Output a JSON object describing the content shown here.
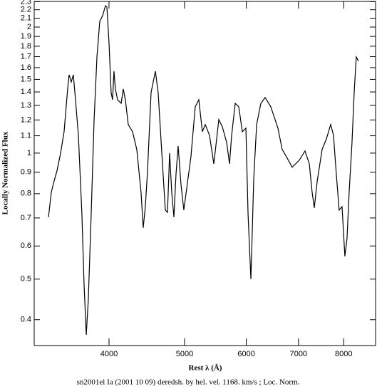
{
  "chart_data": {
    "type": "line",
    "title": "sn2001el Ia (2001 10 09) deredsh. by hel. vel.  1168. km/s ;  Loc. Norm.",
    "x_label": "Rest λ (Å)",
    "y_label": "Locally Normalized Flux",
    "xscale": "log",
    "yscale": "log",
    "xlim": [
      3207,
      8790
    ],
    "ylim": [
      0.347,
      2.303
    ],
    "xticks": [
      4000,
      5000,
      6000,
      7000,
      8000
    ],
    "yticks": [
      0.4,
      0.5,
      0.6,
      0.7,
      0.8,
      0.9,
      1,
      1.1,
      1.2,
      1.3,
      1.4,
      1.5,
      1.6,
      1.7,
      1.8,
      1.9,
      2,
      2.1,
      2.2,
      2.3
    ],
    "color": "#000000",
    "x": [
      3345,
      3373,
      3394,
      3430,
      3467,
      3503,
      3540,
      3555,
      3578,
      3600,
      3623,
      3654,
      3692,
      3716,
      3740,
      3763,
      3795,
      3827,
      3860,
      3892,
      3925,
      3958,
      3975,
      4000,
      4025,
      4042,
      4059,
      4076,
      4102,
      4146,
      4172,
      4198,
      4234,
      4288,
      4342,
      4397,
      4425,
      4453,
      4482,
      4529,
      4587,
      4625,
      4684,
      4724,
      4754,
      4784,
      4814,
      4845,
      4875,
      4906,
      4948,
      4989,
      5031,
      5095,
      5160,
      5215,
      5270,
      5315,
      5382,
      5451,
      5497,
      5532,
      5590,
      5662,
      5710,
      5746,
      5807,
      5868,
      5930,
      5993,
      6031,
      6082,
      6134,
      6186,
      6264,
      6344,
      6450,
      6588,
      6671,
      6756,
      6871,
      7017,
      7136,
      7227,
      7288,
      7335,
      7397,
      7506,
      7601,
      7698,
      7763,
      7828,
      7894,
      7961,
      8028,
      8079,
      8130,
      8199,
      8251,
      8303,
      8356
    ],
    "values": [
      0.703,
      0.806,
      0.845,
      0.907,
      1.0,
      1.125,
      1.423,
      1.538,
      1.479,
      1.538,
      1.341,
      1.103,
      0.717,
      0.485,
      0.368,
      0.448,
      0.717,
      1.193,
      1.697,
      2.064,
      2.129,
      2.249,
      2.232,
      1.835,
      1.395,
      1.341,
      1.569,
      1.423,
      1.341,
      1.315,
      1.423,
      1.341,
      1.17,
      1.125,
      1.02,
      0.806,
      0.663,
      0.745,
      0.907,
      1.395,
      1.569,
      1.395,
      0.943,
      0.731,
      0.722,
      1.0,
      0.806,
      0.703,
      0.889,
      1.04,
      0.84,
      0.731,
      0.822,
      0.98,
      1.29,
      1.341,
      1.125,
      1.17,
      1.103,
      0.943,
      1.081,
      1.202,
      1.156,
      1.06,
      0.943,
      1.103,
      1.315,
      1.29,
      1.125,
      1.147,
      0.717,
      0.5,
      0.872,
      1.17,
      1.315,
      1.357,
      1.29,
      1.147,
      1.02,
      0.98,
      0.925,
      0.962,
      1.012,
      0.943,
      0.806,
      0.74,
      0.855,
      1.02,
      1.081,
      1.17,
      1.103,
      0.889,
      0.731,
      0.745,
      0.567,
      0.625,
      0.806,
      1.06,
      1.395,
      1.697,
      1.66
    ]
  }
}
